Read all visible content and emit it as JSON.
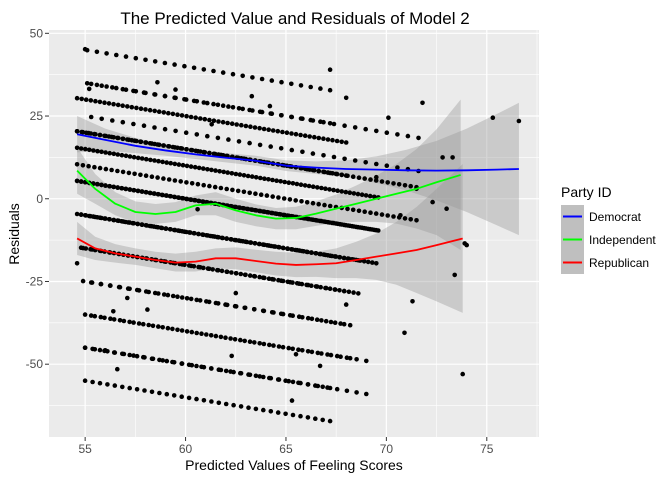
{
  "chart_data": {
    "type": "scatter",
    "title": "The Predicted Value and Residuals of Model 2",
    "xlabel": "Predicted Values of Feeling Scores",
    "ylabel": "Residuals",
    "xlim": [
      53.2,
      77.6
    ],
    "ylim": [
      -72,
      51
    ],
    "x_ticks": [
      55,
      60,
      65,
      70,
      75
    ],
    "y_ticks": [
      -50,
      -25,
      0,
      25,
      50
    ],
    "grid": true,
    "panel_background": "#EBEBEB",
    "point_color": "#000000",
    "band_color": "#999999",
    "legend": {
      "title": "Party ID",
      "position": "right",
      "entries": [
        {
          "name": "Democrat",
          "color": "#0000FF"
        },
        {
          "name": "Independent",
          "color": "#00FF00"
        },
        {
          "name": "Republican",
          "color": "#FF0000"
        }
      ]
    },
    "point_bands": [
      {
        "offset": 100,
        "x_range": [
          55.1,
          67.2
        ],
        "count": 26,
        "step": 10
      },
      {
        "offset": 90,
        "x_range": [
          55.3,
          71.6
        ],
        "count": 32,
        "step": 10
      },
      {
        "offset": 85,
        "x_range": [
          54.6,
          68.0
        ],
        "count": 60,
        "step": 10
      },
      {
        "offset": 75,
        "x_range": [
          54.6,
          71.5
        ],
        "count": 60,
        "step": 10
      },
      {
        "offset": 70,
        "x_range": [
          54.6,
          69.6
        ],
        "count": 75,
        "step": 10
      },
      {
        "offset": 60,
        "x_range": [
          54.6,
          69.5
        ],
        "count": 75,
        "step": 10
      },
      {
        "offset": 50,
        "x_range": [
          54.8,
          68.6
        ],
        "count": 60,
        "step": 10
      },
      {
        "offset": 40,
        "x_range": [
          54.9,
          67.9
        ],
        "count": 30,
        "step": 10
      },
      {
        "offset": 30,
        "x_range": [
          55.3,
          68.2
        ],
        "count": 28,
        "step": 10
      },
      {
        "offset": 20,
        "x_range": [
          55.0,
          69.0
        ],
        "count": 30,
        "step": 10
      },
      {
        "offset": 10,
        "x_range": [
          55.0,
          67.2
        ],
        "count": 34,
        "step": 10
      }
    ],
    "extra_points": [
      {
        "x": 54.6,
        "y": -19.5
      },
      {
        "x": 55.2,
        "y": 33.2
      },
      {
        "x": 55.0,
        "y": 45.2
      },
      {
        "x": 56.0,
        "y": -45.8
      },
      {
        "x": 56.4,
        "y": -34.0
      },
      {
        "x": 56.6,
        "y": -51.5
      },
      {
        "x": 57.1,
        "y": -30.0
      },
      {
        "x": 58.1,
        "y": -33.5
      },
      {
        "x": 58.6,
        "y": 35.2
      },
      {
        "x": 59.5,
        "y": 33.0
      },
      {
        "x": 60.6,
        "y": -3.2
      },
      {
        "x": 61.3,
        "y": 22.5
      },
      {
        "x": 62.3,
        "y": -47.5
      },
      {
        "x": 62.5,
        "y": -28.5
      },
      {
        "x": 63.3,
        "y": 31.0
      },
      {
        "x": 64.2,
        "y": 28.0
      },
      {
        "x": 65.3,
        "y": -61.0
      },
      {
        "x": 65.5,
        "y": -47.0
      },
      {
        "x": 66.7,
        "y": -50.5
      },
      {
        "x": 67.2,
        "y": 39.0
      },
      {
        "x": 68.0,
        "y": 30.5
      },
      {
        "x": 68.0,
        "y": -32.0
      },
      {
        "x": 69.5,
        "y": 6.5
      },
      {
        "x": 70.1,
        "y": 24.5
      },
      {
        "x": 70.7,
        "y": -5.0
      },
      {
        "x": 70.9,
        "y": -40.5
      },
      {
        "x": 71.5,
        "y": 3.0
      },
      {
        "x": 71.8,
        "y": 29.0
      },
      {
        "x": 71.3,
        "y": -31.0
      },
      {
        "x": 72.3,
        "y": -1.0
      },
      {
        "x": 72.8,
        "y": 12.5
      },
      {
        "x": 73.3,
        "y": 12.5
      },
      {
        "x": 73.0,
        "y": -3.0
      },
      {
        "x": 73.4,
        "y": -23.0
      },
      {
        "x": 73.8,
        "y": -53.0
      },
      {
        "x": 73.9,
        "y": -13.5
      },
      {
        "x": 74.0,
        "y": -14.0
      },
      {
        "x": 75.3,
        "y": 24.5
      },
      {
        "x": 76.6,
        "y": 23.5
      }
    ],
    "series": [
      {
        "name": "Democrat",
        "color": "#0000FF",
        "x": [
          54.6,
          56,
          57.5,
          59,
          60.5,
          62,
          63.5,
          65,
          66.5,
          68,
          69.5,
          71,
          72.5,
          74,
          75.5,
          76.6
        ],
        "y": [
          19.5,
          17.8,
          16.0,
          14.6,
          13.4,
          12.4,
          11.5,
          10.0,
          9.4,
          9.0,
          8.8,
          8.6,
          8.5,
          8.6,
          8.8,
          9.0
        ],
        "band_low": [
          14.0,
          14.5,
          13.8,
          13.0,
          12.0,
          11.0,
          10.0,
          8.4,
          7.5,
          6.5,
          4.8,
          2.5,
          -0.5,
          -4.0,
          -8.0,
          -11.0
        ],
        "band_high": [
          25.0,
          21.2,
          18.4,
          16.2,
          14.8,
          13.8,
          13.0,
          11.6,
          11.3,
          11.6,
          12.8,
          14.8,
          17.5,
          21.2,
          25.6,
          29.0
        ]
      },
      {
        "name": "Independent",
        "color": "#00FF00",
        "x": [
          54.6,
          55.5,
          56.5,
          57.5,
          58.5,
          59.5,
          60.5,
          61.5,
          62.5,
          63.5,
          64.5,
          65.5,
          66.5,
          67.5,
          68.5,
          69.5,
          70.5,
          71.5,
          72.5,
          73.7
        ],
        "y": [
          8.5,
          3.0,
          -1.5,
          -4.0,
          -4.6,
          -4.0,
          -2.0,
          -1.5,
          -3.5,
          -5.0,
          -6.0,
          -5.8,
          -4.5,
          -3.0,
          -1.5,
          0.0,
          1.5,
          3.0,
          5.0,
          7.2
        ],
        "band_low": [
          1.5,
          -1.5,
          -5.0,
          -7.2,
          -7.6,
          -7.0,
          -5.0,
          -5.0,
          -7.0,
          -8.3,
          -9.2,
          -9.2,
          -8.2,
          -7.3,
          -7.0,
          -7.0,
          -7.5,
          -9.0,
          -11.0,
          -15.5
        ],
        "band_high": [
          15.5,
          7.5,
          2.0,
          -0.8,
          -1.6,
          -1.0,
          1.0,
          2.0,
          0.0,
          -1.7,
          -2.8,
          -2.4,
          -0.8,
          1.3,
          4.0,
          7.0,
          10.5,
          15.0,
          21.0,
          30.0
        ]
      },
      {
        "name": "Republican",
        "color": "#FF0000",
        "x": [
          54.6,
          55.5,
          56.5,
          57.5,
          58.5,
          59.5,
          60.5,
          61.5,
          62.5,
          63.5,
          64.5,
          65.5,
          66.5,
          67.5,
          68.5,
          69.5,
          70.5,
          71.5,
          72.5,
          73.8
        ],
        "y": [
          -12.0,
          -15.0,
          -16.5,
          -17.5,
          -18.5,
          -19.3,
          -19.0,
          -18.0,
          -18.0,
          -18.8,
          -19.6,
          -20.0,
          -19.8,
          -19.5,
          -18.5,
          -17.5,
          -16.5,
          -15.5,
          -14.0,
          -12.0
        ],
        "band_low": [
          -17.0,
          -18.5,
          -19.3,
          -20.0,
          -21.0,
          -22.0,
          -22.0,
          -21.0,
          -21.3,
          -22.2,
          -23.2,
          -23.7,
          -23.6,
          -24.0,
          -24.0,
          -24.5,
          -26.0,
          -28.5,
          -31.0,
          -34.5
        ],
        "band_high": [
          -7.0,
          -11.5,
          -13.7,
          -15.0,
          -16.0,
          -16.6,
          -16.0,
          -15.0,
          -14.7,
          -15.4,
          -16.0,
          -16.3,
          -16.0,
          -15.0,
          -13.0,
          -10.5,
          -7.0,
          -2.5,
          3.0,
          10.5
        ]
      }
    ]
  }
}
